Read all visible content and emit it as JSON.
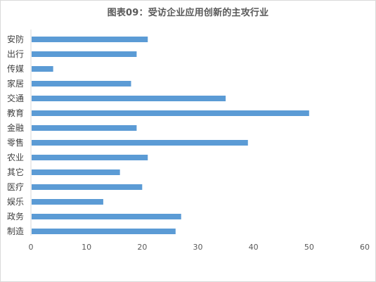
{
  "chart_data": {
    "type": "bar",
    "orientation": "horizontal",
    "title": "图表09：受访企业应用创新的主攻行业",
    "categories": [
      "安防",
      "出行",
      "传媒",
      "家居",
      "交通",
      "教育",
      "金融",
      "零售",
      "农业",
      "其它",
      "医疗",
      "娱乐",
      "政务",
      "制造"
    ],
    "values": [
      21,
      19,
      4,
      18,
      35,
      50,
      19,
      39,
      21,
      16,
      20,
      13,
      27,
      26
    ],
    "xlim": [
      0,
      60
    ],
    "xticks": [
      "0",
      "10",
      "20",
      "30",
      "40",
      "50",
      "60"
    ],
    "xlabel": "",
    "ylabel": "",
    "grid": false,
    "legend": "none",
    "bar_color": "#5b9bd5"
  }
}
